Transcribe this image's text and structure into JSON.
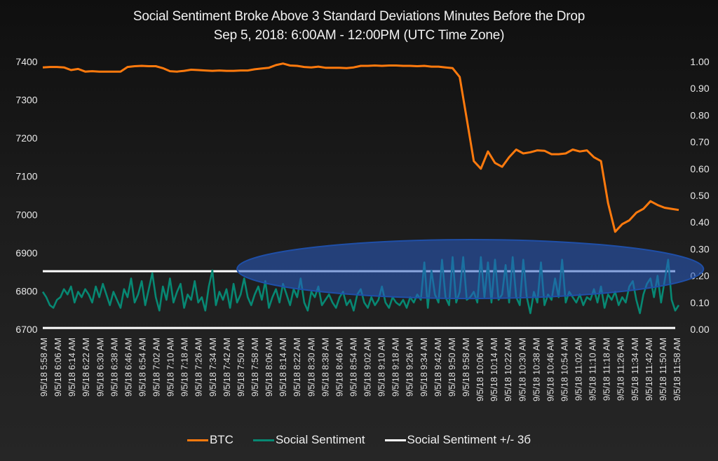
{
  "chart_data": {
    "type": "line",
    "title": "Social Sentiment Broke Above 3 Standard Deviations Minutes Before the Drop",
    "subtitle": "Sep 5, 2018: 6:00AM - 12:00PM  (UTC Time Zone)",
    "xlabel": "",
    "ylabel_left": "",
    "ylabel_right": "",
    "grid": false,
    "legend_position": "bottom",
    "y_left": {
      "range": [
        6700,
        7400
      ],
      "ticks": [
        "7400",
        "7300",
        "7200",
        "7100",
        "7000",
        "6900",
        "6800",
        "6700"
      ]
    },
    "y_right": {
      "range": [
        0.0,
        1.0
      ],
      "ticks": [
        "1.00",
        "0.90",
        "0.80",
        "0.70",
        "0.60",
        "0.50",
        "0.40",
        "0.30",
        "0.20",
        "0.10",
        "0.00"
      ]
    },
    "x_ticks": [
      "9/5/18 5:58 AM",
      "9/5/18 6:06 AM",
      "9/5/18 6:14 AM",
      "9/5/18 6:22 AM",
      "9/5/18 6:30 AM",
      "9/5/18 6:38 AM",
      "9/5/18 6:46 AM",
      "9/5/18 6:54 AM",
      "9/5/18 7:02 AM",
      "9/5/18 7:10 AM",
      "9/5/18 7:18 AM",
      "9/5/18 7:26 AM",
      "9/5/18 7:34 AM",
      "9/5/18 7:42 AM",
      "9/5/18 7:50 AM",
      "9/5/18 7:58 AM",
      "9/5/18 8:06 AM",
      "9/5/18 8:14 AM",
      "9/5/18 8:22 AM",
      "9/5/18 8:30 AM",
      "9/5/18 8:38 AM",
      "9/5/18 8:46 AM",
      "9/5/18 8:54 AM",
      "9/5/18 9:02 AM",
      "9/5/18 9:10 AM",
      "9/5/18 9:18 AM",
      "9/5/18 9:26 AM",
      "9/5/18 9:34 AM",
      "9/5/18 9:42 AM",
      "9/5/18 9:50 AM",
      "9/5/18 9:58 AM",
      "9/5/18 10:06 AM",
      "9/5/18 10:14 AM",
      "9/5/18 10:22 AM",
      "9/5/18 10:30 AM",
      "9/5/18 10:38 AM",
      "9/5/18 10:46 AM",
      "9/5/18 10:54 AM",
      "9/5/18 11:02 AM",
      "9/5/18 11:10 AM",
      "9/5/18 11:18 AM",
      "9/5/18 11:26 AM",
      "9/5/18 11:34 AM",
      "9/5/18 11:42 AM",
      "9/5/18 11:50 AM",
      "9/5/18 11:58 AM"
    ],
    "x_range_minutes": [
      0,
      360
    ],
    "series": [
      {
        "name": "BTC",
        "axis": "left",
        "color": "#ff7a0d",
        "step_minutes": 4,
        "values": [
          7385,
          7386,
          7386,
          7385,
          7378,
          7381,
          7374,
          7375,
          7374,
          7374,
          7374,
          7374,
          7386,
          7388,
          7389,
          7388,
          7388,
          7383,
          7375,
          7374,
          7376,
          7379,
          7378,
          7377,
          7376,
          7377,
          7376,
          7376,
          7377,
          7377,
          7380,
          7382,
          7384,
          7391,
          7395,
          7390,
          7389,
          7386,
          7385,
          7387,
          7384,
          7384,
          7384,
          7383,
          7385,
          7389,
          7389,
          7390,
          7389,
          7390,
          7390,
          7389,
          7389,
          7388,
          7389,
          7387,
          7387,
          7385,
          7383,
          7360,
          7250,
          7140,
          7120,
          7165,
          7135,
          7125,
          7150,
          7170,
          7160,
          7163,
          7168,
          7167,
          7158,
          7158,
          7160,
          7170,
          7165,
          7168,
          7150,
          7140,
          7030,
          6955,
          6975,
          6985,
          7005,
          7015,
          7035,
          7025,
          7018,
          7015,
          7012
        ]
      },
      {
        "name": "Social Sentiment",
        "axis": "right",
        "color": "#078873",
        "step_minutes": 2,
        "values": [
          0.14,
          0.12,
          0.09,
          0.08,
          0.11,
          0.12,
          0.15,
          0.13,
          0.16,
          0.1,
          0.14,
          0.12,
          0.15,
          0.13,
          0.1,
          0.16,
          0.12,
          0.17,
          0.13,
          0.09,
          0.14,
          0.11,
          0.08,
          0.15,
          0.12,
          0.19,
          0.1,
          0.13,
          0.18,
          0.09,
          0.15,
          0.21,
          0.12,
          0.07,
          0.16,
          0.11,
          0.19,
          0.1,
          0.14,
          0.17,
          0.08,
          0.13,
          0.11,
          0.18,
          0.1,
          0.12,
          0.07,
          0.16,
          0.22,
          0.09,
          0.14,
          0.11,
          0.15,
          0.08,
          0.17,
          0.1,
          0.13,
          0.19,
          0.12,
          0.09,
          0.13,
          0.16,
          0.11,
          0.18,
          0.08,
          0.12,
          0.15,
          0.1,
          0.17,
          0.13,
          0.09,
          0.15,
          0.12,
          0.19,
          0.1,
          0.07,
          0.14,
          0.12,
          0.16,
          0.09,
          0.11,
          0.13,
          0.1,
          0.08,
          0.12,
          0.14,
          0.09,
          0.11,
          0.07,
          0.13,
          0.15,
          0.1,
          0.08,
          0.12,
          0.09,
          0.11,
          0.16,
          0.1,
          0.08,
          0.12,
          0.1,
          0.09,
          0.11,
          0.08,
          0.12,
          0.1,
          0.13,
          0.11,
          0.25,
          0.08,
          0.22,
          0.13,
          0.1,
          0.26,
          0.12,
          0.09,
          0.27,
          0.1,
          0.14,
          0.27,
          0.11,
          0.12,
          0.14,
          0.1,
          0.27,
          0.12,
          0.25,
          0.1,
          0.26,
          0.11,
          0.13,
          0.24,
          0.1,
          0.27,
          0.12,
          0.09,
          0.26,
          0.12,
          0.06,
          0.14,
          0.1,
          0.25,
          0.09,
          0.13,
          0.11,
          0.19,
          0.12,
          0.26,
          0.1,
          0.14,
          0.12,
          0.1,
          0.13,
          0.09,
          0.12,
          0.11,
          0.15,
          0.1,
          0.16,
          0.08,
          0.13,
          0.11,
          0.14,
          0.09,
          0.12,
          0.1,
          0.16,
          0.18,
          0.11,
          0.06,
          0.13,
          0.17,
          0.19,
          0.12,
          0.2,
          0.1,
          0.18,
          0.26,
          0.11,
          0.07,
          0.09
        ]
      },
      {
        "name": "Social Sentiment +/- 3б",
        "axis": "right",
        "color": "#ffffff",
        "upper": 0.217,
        "lower": 0.005
      }
    ],
    "annotations": [
      {
        "type": "ellipse",
        "label": "",
        "color": "#1f4fa8",
        "x_minutes_center": 242,
        "y_value_center": 0.225,
        "x_minutes_halfwidth": 132,
        "y_value_halfwidth": 0.11
      }
    ]
  },
  "legend": [
    {
      "label": "BTC",
      "color": "#ff7a0d"
    },
    {
      "label": "Social Sentiment",
      "color": "#078873"
    },
    {
      "label": "Social Sentiment +/- 3б",
      "color": "#ffffff"
    }
  ]
}
